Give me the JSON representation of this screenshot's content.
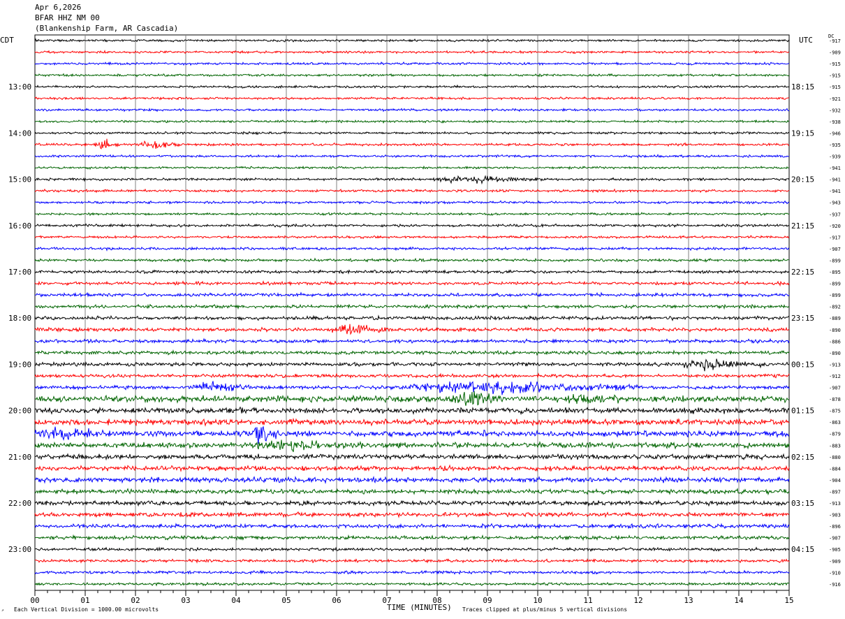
{
  "header": {
    "date": "Apr 6,2026",
    "station": "BFAR HHZ NM 00",
    "site": "(Blankenship Farm, AR Cascadia)"
  },
  "left_tz": "CDT",
  "right_tz": "UTC",
  "dc_label": "DC",
  "x_axis_title": "TIME (MINUTES)",
  "footer_left": "Each Vertical Division = 1000.00 microvolts",
  "footer_right": "Traces clipped at plus/minus 5 vertical divisions",
  "colors": {
    "black": "#000000",
    "red": "#ff0000",
    "blue": "#0000ff",
    "green": "#006400",
    "grid": "#808080"
  },
  "chart_data": {
    "type": "line",
    "subtype": "helicorder",
    "x_range": [
      0,
      15
    ],
    "x_ticks": [
      "00",
      "01",
      "02",
      "03",
      "04",
      "05",
      "06",
      "07",
      "08",
      "09",
      "10",
      "11",
      "12",
      "13",
      "14",
      "15"
    ],
    "trace_count": 48,
    "trace_color_cycle": [
      "black",
      "red",
      "blue",
      "green"
    ],
    "left_labels": [
      "13:00",
      "14:00",
      "15:00",
      "16:00",
      "17:00",
      "18:00",
      "19:00",
      "20:00",
      "21:00",
      "22:00",
      "23:00"
    ],
    "right_labels": [
      "18:15",
      "19:15",
      "20:15",
      "21:15",
      "22:15",
      "23:15",
      "00:15",
      "01:15",
      "02:15",
      "03:15",
      "04:15"
    ],
    "label_every_n_traces": 4,
    "first_labeled_trace": 4,
    "dc_offsets": [
      "-917",
      "-909",
      "-915",
      "-915",
      "-915",
      "-921",
      "-932",
      "-938",
      "-946",
      "-935",
      "-939",
      "-941",
      "-941",
      "-941",
      "-943",
      "-937",
      "-920",
      "-917",
      "-907",
      "-899",
      "-895",
      "-899",
      "-899",
      "-892",
      "-889",
      "-890",
      "-886",
      "-890",
      "-913",
      "-912",
      "-907",
      "-878",
      "-875",
      "-863",
      "-879",
      "-883",
      "-880",
      "-884",
      "-904",
      "-897",
      "-913",
      "-903",
      "-896",
      "-907",
      "-905",
      "-909",
      "-910",
      "-916"
    ],
    "base_amplitude": [
      1.2,
      1.2,
      1.2,
      1.2,
      1.2,
      1.2,
      1.2,
      1.2,
      1.2,
      1.3,
      1.2,
      1.2,
      1.3,
      1.3,
      1.3,
      1.2,
      1.4,
      1.3,
      1.4,
      1.5,
      1.6,
      1.7,
      1.8,
      1.8,
      1.9,
      1.9,
      1.8,
      1.8,
      1.9,
      1.8,
      2.0,
      3.2,
      3.0,
      3.0,
      3.0,
      2.8,
      2.6,
      2.5,
      2.6,
      2.4,
      2.4,
      2.2,
      2.1,
      2.0,
      1.6,
      1.5,
      1.5,
      1.4
    ],
    "events": [
      {
        "trace": 9,
        "start_min": 1.2,
        "end_min": 1.7,
        "amp": 6
      },
      {
        "trace": 9,
        "start_min": 2.1,
        "end_min": 2.9,
        "amp": 4
      },
      {
        "trace": 12,
        "start_min": 8.0,
        "end_min": 10.0,
        "amp": 4
      },
      {
        "trace": 25,
        "start_min": 5.9,
        "end_min": 7.0,
        "amp": 5
      },
      {
        "trace": 28,
        "start_min": 12.8,
        "end_min": 14.5,
        "amp": 4
      },
      {
        "trace": 30,
        "start_min": 3.1,
        "end_min": 4.3,
        "amp": 4
      },
      {
        "trace": 30,
        "start_min": 7.3,
        "end_min": 12.0,
        "amp": 6
      },
      {
        "trace": 31,
        "start_min": 8.2,
        "end_min": 9.6,
        "amp": 5
      },
      {
        "trace": 31,
        "start_min": 10.6,
        "end_min": 11.6,
        "amp": 5
      },
      {
        "trace": 34,
        "start_min": 0.0,
        "end_min": 1.8,
        "amp": 4
      },
      {
        "trace": 34,
        "start_min": 4.3,
        "end_min": 4.9,
        "amp": 10
      },
      {
        "trace": 35,
        "start_min": 4.3,
        "end_min": 6.5,
        "amp": 4
      }
    ]
  }
}
